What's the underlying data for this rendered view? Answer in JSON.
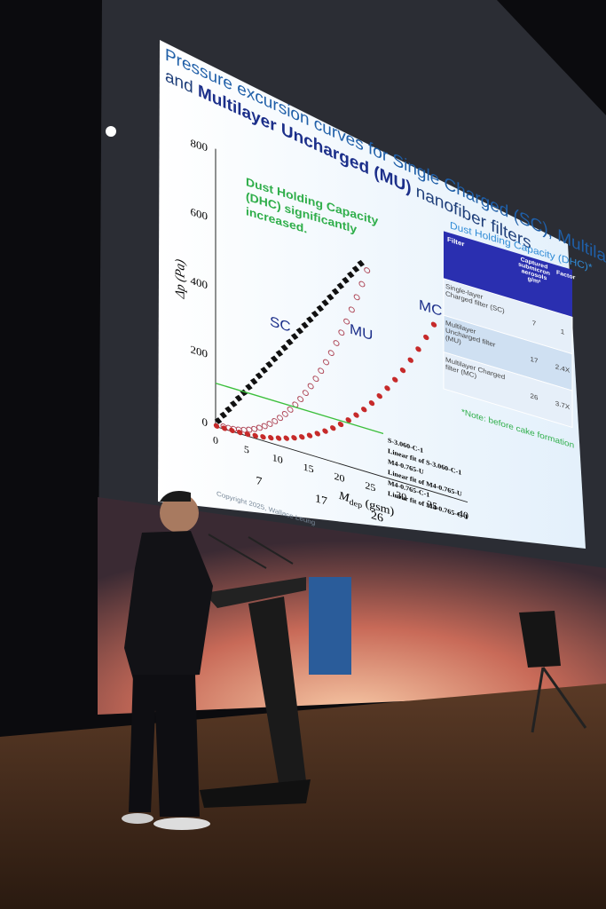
{
  "slide": {
    "title_line1": "Pressure excursion curves for Single Charged (SC), Multilayer Charged (MC)",
    "title_line2": [
      "and ",
      "Multilayer Uncharged (MU)",
      " nanofiber filters"
    ],
    "chart": {
      "y_label": "Δp (Pa)",
      "x_label": [
        "M",
        "dep",
        " (gsm)"
      ],
      "yticks": [
        "0",
        "200",
        "400",
        "600",
        "800"
      ],
      "xticks": [
        "0",
        "5",
        "10",
        "15",
        "20",
        "25",
        "30",
        "35",
        "40"
      ],
      "markers": [
        "7",
        "17",
        "26"
      ],
      "curve_labels": [
        "SC",
        "MU",
        "MC"
      ],
      "annotation": [
        "Dust Holding Capacity",
        "(DHC) significantly",
        "increased."
      ],
      "legend": [
        "S-3.060-C-1",
        "Linear fit of S-3.060-C-1",
        "M4-0.765-U",
        "Linear fit of M4-0.765-U",
        "M4-0.765-C-1",
        "Linear fit of M4-0.765-C-1"
      ]
    },
    "table": {
      "heading": "Dust Holding Capacity (DHC)*",
      "columns": [
        "Filter",
        "Captured submicron aerosols g/m²",
        "Factor"
      ],
      "rows": [
        [
          "Single-layer Charged filter (SC)",
          "7",
          "1"
        ],
        [
          "Multilayer Uncharged filter (MU)",
          "17",
          "2.4X"
        ],
        [
          "Multilayer Charged filter (MC)",
          "26",
          "3.7X"
        ]
      ],
      "note": "*Note: before cake formation"
    },
    "copyright": "Copyright 2025, Wallace Leung"
  }
}
